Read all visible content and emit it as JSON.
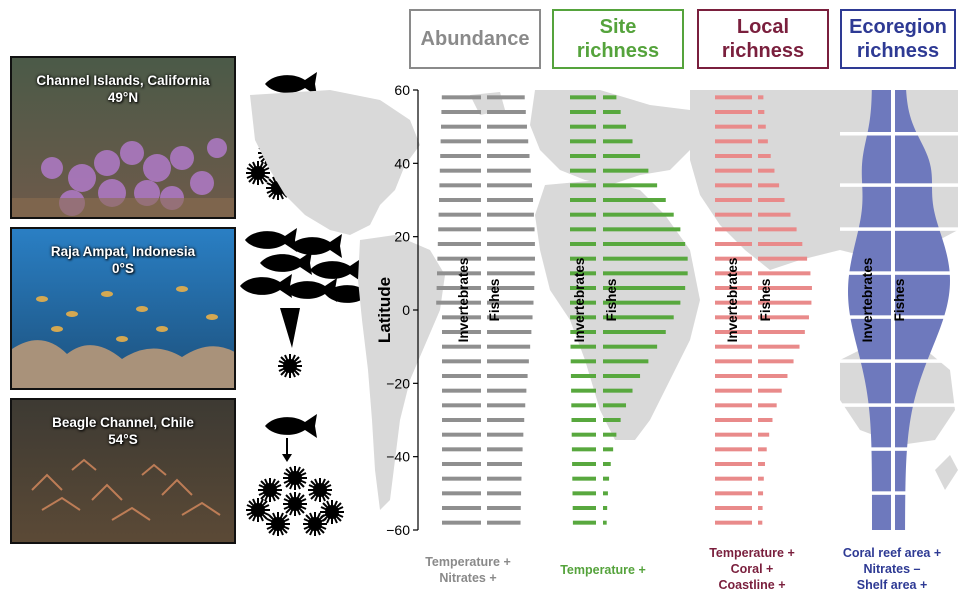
{
  "photos": [
    {
      "title": "Channel Islands, California",
      "lat": "49°N"
    },
    {
      "title": "Raja Ampat, Indonesia",
      "lat": "0°S"
    },
    {
      "title": "Beagle Channel, Chile",
      "lat": "54°S"
    }
  ],
  "panels": [
    {
      "title": "Abundance",
      "color": "#8a8a8a",
      "footer": [
        "Temperature +",
        "Nitrates +"
      ]
    },
    {
      "title": "Site richness",
      "color": "#55a33c",
      "footer": [
        "Temperature +"
      ]
    },
    {
      "title": "Local richness",
      "color": "#7a1f3d",
      "footer": [
        "Temperature +",
        "Coral +",
        "Coastline +"
      ]
    },
    {
      "title": "Ecoregion richness",
      "color": "#2e3a94",
      "footer": [
        "Coral reef area +",
        "Nitrates –",
        "Shelf area +"
      ]
    }
  ],
  "chart_data": {
    "type": "bar",
    "ylabel": "Latitude",
    "ylim": [
      -60,
      60
    ],
    "yticks": [
      "60",
      "40",
      "20",
      "0",
      "−20",
      "−40",
      "−60"
    ],
    "series_labels": [
      "Invertebrates",
      "Fishes"
    ],
    "series": [
      {
        "panel": "Abundance",
        "color": "#8f8f8f",
        "profile": "uniform-wide"
      },
      {
        "panel": "Site richness",
        "color": "#58a83e",
        "profile": "skewed-north-peak"
      },
      {
        "panel": "Local richness",
        "color": "#e98a8a",
        "profile": "equatorial-peak"
      },
      {
        "panel": "Ecoregion richness",
        "color": "#6e79bd",
        "profile": "double-bulge"
      }
    ]
  },
  "colors": {
    "map": "#d9d9d9"
  }
}
